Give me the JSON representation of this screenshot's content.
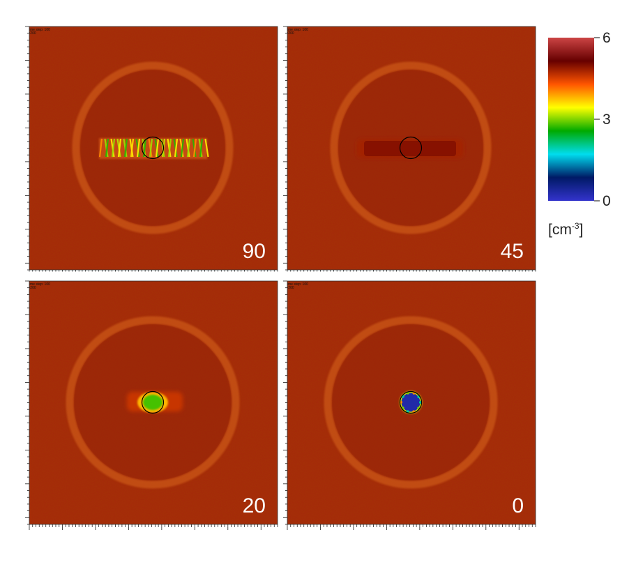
{
  "chart_data": {
    "type": "heatmap",
    "panels": [
      {
        "label": "90",
        "header": [
          "Time step: 100",
          "t=200"
        ],
        "core": "stripes",
        "core_value": 3.5
      },
      {
        "label": "45",
        "header": [
          "Time step: 100",
          "t=200"
        ],
        "core": "bar",
        "core_value": 4.8
      },
      {
        "label": "20",
        "header": [
          "Time step: 100",
          "t=200"
        ],
        "core": "blob",
        "core_value": 2.8
      },
      {
        "label": "0",
        "header": [
          "Time step: 100",
          "t=200"
        ],
        "core": "hole",
        "core_value": 0.3
      }
    ],
    "colorbar": {
      "min": 0,
      "max": 6,
      "ticks": [
        6,
        3,
        0
      ],
      "unit_text": "[cm",
      "unit_exp": "-3",
      "unit_close": "]",
      "colors": [
        "#3333cc",
        "#001a66",
        "#00ddee",
        "#00aa00",
        "#ffff00",
        "#ff5500",
        "#660000",
        "#cc4444"
      ]
    },
    "background_color": "#a52a0a",
    "ring_color": "#d9661e"
  }
}
